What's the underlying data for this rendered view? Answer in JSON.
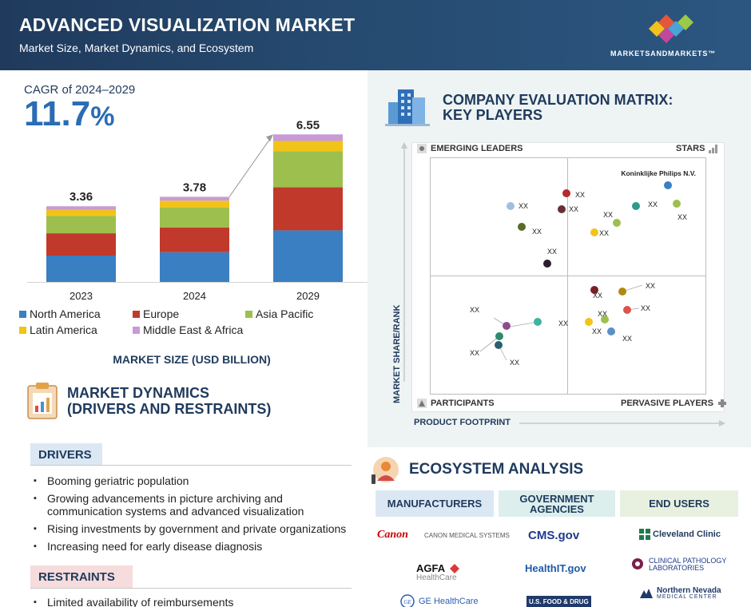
{
  "header": {
    "title": "ADVANCED VISUALIZATION MARKET",
    "subtitle": "Market Size, Market Dynamics, and Ecosystem",
    "brand_name": "MARKETSANDMARKETS™"
  },
  "cagr": {
    "label": "CAGR of 2024–2029",
    "value": "11.7",
    "unit": "%"
  },
  "chart_data": {
    "type": "bar",
    "stacked": true,
    "categories": [
      "2023",
      "2024",
      "2029"
    ],
    "totals": [
      "3.36",
      "3.78",
      "6.55"
    ],
    "series": [
      {
        "name": "North America",
        "color": "#3a7fc1",
        "values": [
          1.17,
          1.32,
          2.29
        ]
      },
      {
        "name": "Europe",
        "color": "#c1392b",
        "values": [
          0.99,
          1.1,
          1.91
        ]
      },
      {
        "name": "Asia Pacific",
        "color": "#9dbf4d",
        "values": [
          0.77,
          0.89,
          1.6
        ]
      },
      {
        "name": "Latin America",
        "color": "#f2c318",
        "values": [
          0.27,
          0.3,
          0.46
        ]
      },
      {
        "name": "Middle East & Africa",
        "color": "#c89ad6",
        "values": [
          0.16,
          0.17,
          0.29
        ]
      }
    ],
    "caption": "MARKET SIZE (USD BILLION)"
  },
  "dynamics": {
    "title_line1": "MARKET DYNAMICS",
    "title_line2": "(DRIVERS AND RESTRAINTS)",
    "drivers_label": "DRIVERS",
    "drivers": [
      "Booming geriatric population",
      "Growing advancements in picture archiving and communication systems and advanced visualization",
      "Rising investments by government and private organizations",
      "Increasing need for early disease diagnosis"
    ],
    "restraints_label": "RESTRAINTS",
    "restraints": [
      "Limited availability of reimbursements"
    ]
  },
  "matrix": {
    "title_line1": "COMPANY EVALUATION MATRIX:",
    "title_line2": "KEY PLAYERS",
    "quadrants": {
      "top_left": "EMERGING LEADERS",
      "top_right": "STARS",
      "bottom_left": "PARTICIPANTS",
      "bottom_right": "PERVASIVE PLAYERS"
    },
    "y_axis": "MARKET SHARE/RANK",
    "x_axis": "PRODUCT FOOTPRINT",
    "named_company": "Koninklijke Philips N.V.",
    "placeholder_label": "XX",
    "points": [
      {
        "color": "#3a7fc1"
      },
      {
        "color": "#9dbf4d"
      },
      {
        "color": "#2e9a8a"
      },
      {
        "color": "#9dbf4d"
      },
      {
        "color": "#f2c318"
      },
      {
        "color": "#b52a2a"
      },
      {
        "color": "#6b2c3a"
      },
      {
        "color": "#9dbfe0"
      },
      {
        "color": "#5a6b2a"
      },
      {
        "color": "#2a1f2f"
      },
      {
        "color": "#7a1f2a"
      },
      {
        "color": "#b08a10"
      },
      {
        "color": "#d9534f"
      },
      {
        "color": "#f2c318"
      },
      {
        "color": "#9dbf4d"
      },
      {
        "color": "#5b8fc7"
      },
      {
        "color": "#3ab5a0"
      },
      {
        "color": "#8e4c8e"
      },
      {
        "color": "#2e8a6a"
      },
      {
        "color": "#2a6070"
      }
    ]
  },
  "ecosystem": {
    "title": "ECOSYSTEM ANALYSIS",
    "columns": [
      {
        "label": "MANUFACTURERS",
        "color": "#dbe8f4",
        "items": [
          "Canon",
          "CANON MEDICAL SYSTEMS",
          "AGFA",
          "HealthCare",
          "GE HealthCare"
        ]
      },
      {
        "label": "GOVERNMENT AGENCIES",
        "color": "#dcefec",
        "items": [
          "CMS.gov",
          "HealthIT.gov",
          "U.S. FOOD & DRUG"
        ]
      },
      {
        "label": "END USERS",
        "color": "#e8f0e0",
        "items": [
          "Cleveland Clinic",
          "CLINICAL PATHOLOGY",
          "LABORATORIES",
          "Northern Nevada",
          "MEDICAL CENTER"
        ]
      }
    ]
  }
}
